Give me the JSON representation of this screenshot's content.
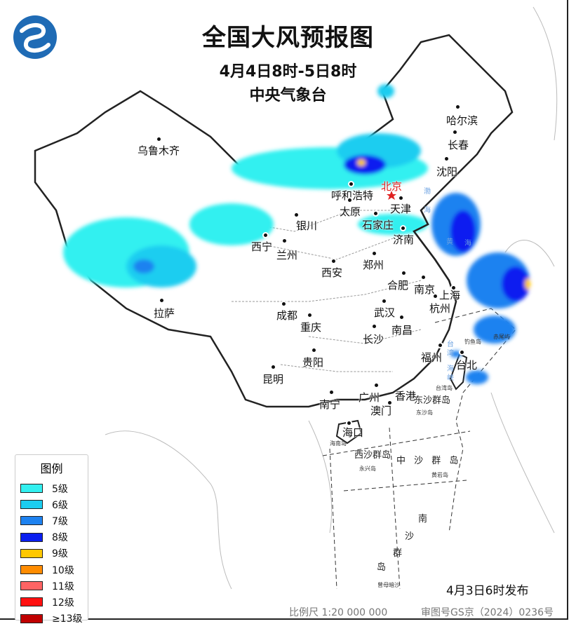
{
  "title": "全国大风预报图",
  "period": "4月4日8时-5日8时",
  "issuer": "中央气象台",
  "issued_time": "4月3日6时发布",
  "scale": "比例尺 1:20 000 000",
  "map_approval": "审图号GS京（2024）0236号",
  "legend": {
    "title": "图例",
    "items": [
      {
        "label": "5级",
        "color": "#33f0f0"
      },
      {
        "label": "6级",
        "color": "#1ccdf0"
      },
      {
        "label": "7级",
        "color": "#1e82f0"
      },
      {
        "label": "8级",
        "color": "#0a1ef0"
      },
      {
        "label": "9级",
        "color": "#ffc800"
      },
      {
        "label": "10级",
        "color": "#ff8c00"
      },
      {
        "label": "11级",
        "color": "#ff6464"
      },
      {
        "label": "12级",
        "color": "#ff1010"
      },
      {
        "label": "≥13级",
        "color": "#c00000"
      }
    ]
  },
  "capital": {
    "name": "北京",
    "color": "#e02020"
  },
  "cities": [
    "哈尔滨",
    "长春",
    "沈阳",
    "乌鲁木齐",
    "呼和浩特",
    "天津",
    "太原",
    "石家庄",
    "银川",
    "济南",
    "西宁",
    "兰州",
    "郑州",
    "西安",
    "合肥",
    "南京",
    "上海",
    "杭州",
    "拉萨",
    "成都",
    "武汉",
    "重庆",
    "南昌",
    "长沙",
    "福州",
    "台北",
    "贵阳",
    "昆明",
    "南宁",
    "广州",
    "香港",
    "澳门",
    "海口"
  ],
  "islands": [
    "东沙群岛",
    "东沙岛",
    "海南岛",
    "西沙群岛",
    "永兴岛",
    "中 沙 群 岛",
    "黄岩岛",
    "南",
    "沙",
    "群",
    "岛",
    "曾母暗沙",
    "钓鱼岛",
    "赤尾屿",
    "台湾岛"
  ],
  "seas": [
    "渤",
    "海",
    "黄",
    "海",
    "台",
    "湾",
    "海",
    "峡"
  ]
}
